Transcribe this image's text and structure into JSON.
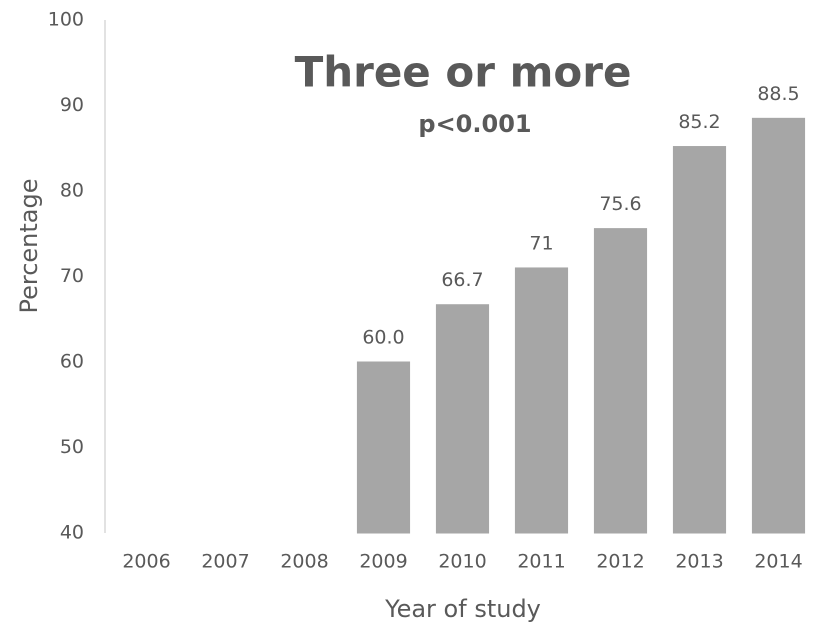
{
  "chart_data": {
    "type": "bar",
    "title": "Three or more",
    "subtitle": "p<0.001",
    "x_label": "Year of study",
    "y_label": "Percentage",
    "categories": [
      "2006",
      "2007",
      "2008",
      "2009",
      "2010",
      "2011",
      "2012",
      "2013",
      "2014"
    ],
    "values": [
      40,
      40,
      40,
      60,
      66.7,
      71,
      75.6,
      85.2,
      88.5
    ],
    "value_labels": [
      null,
      null,
      null,
      "60.0",
      "66.7",
      "71",
      "75.6",
      "85.2",
      "88.5"
    ],
    "color": "#a6a6a6",
    "ylim": [
      40,
      100
    ],
    "yticks": [
      40,
      50,
      60,
      70,
      80,
      90,
      100
    ],
    "grid": false
  }
}
